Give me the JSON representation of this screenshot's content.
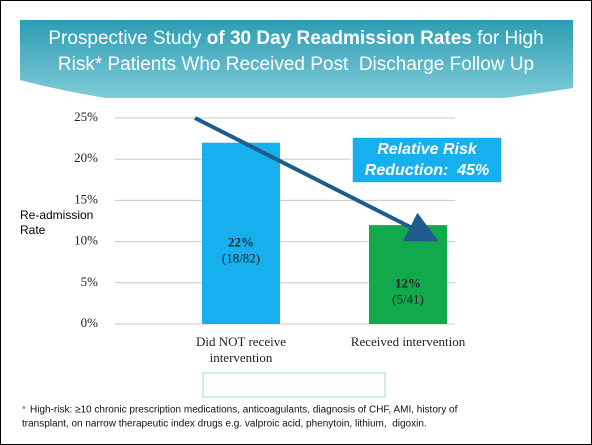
{
  "chart_data": {
    "type": "bar",
    "title_lines": [
      [
        {
          "text": "Prospective Study ",
          "bold": false
        },
        {
          "text": "of 30 Day Readmission Rates",
          "bold": true
        },
        {
          "text": " for High",
          "bold": false
        }
      ],
      [
        {
          "text": "Risk* Patients Who Received Post  Discharge Follow Up",
          "bold": false
        }
      ]
    ],
    "ylabel_lines": [
      "Re-admission",
      "Rate"
    ],
    "categories": [
      [
        "Did NOT receive",
        "intervention"
      ],
      [
        "Received intervention"
      ]
    ],
    "values": [
      22,
      12
    ],
    "value_labels": [
      "22%",
      "12%"
    ],
    "annotations": [
      "(18/82)",
      "(5/41)"
    ],
    "colors": [
      "#17b0ee",
      "#12a94d"
    ],
    "ylim": [
      0,
      25
    ],
    "yticks": [
      {
        "value": 0,
        "label": "0%"
      },
      {
        "value": 5,
        "label": "5%"
      },
      {
        "value": 10,
        "label": "10%"
      },
      {
        "value": 15,
        "label": "15%"
      },
      {
        "value": 20,
        "label": "20%"
      },
      {
        "value": 25,
        "label": "25%"
      }
    ],
    "grid": true,
    "callout_lines": [
      "Relative Risk",
      "Reduction:  45%"
    ],
    "footnote": {
      "marker": "*",
      "lines": [
        "High-risk: ≥10 chronic prescription medications, anticoagulants, diagnosis of CHF, AMI, history of",
        "transplant, on narrow therapeutic index drugs e.g. valproic acid, phenytoin, lithium,  digoxin."
      ]
    }
  }
}
